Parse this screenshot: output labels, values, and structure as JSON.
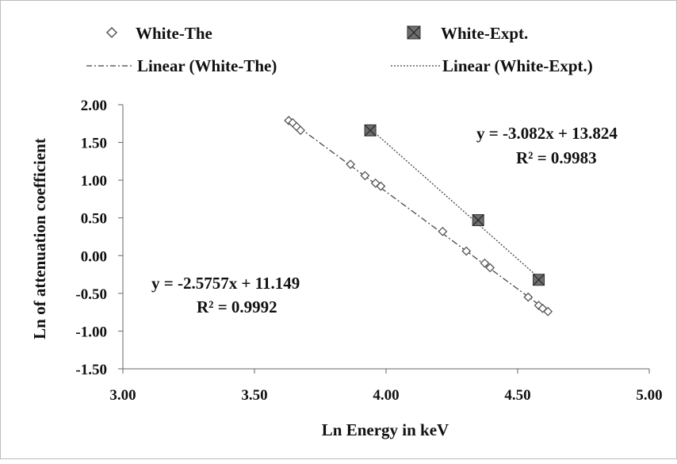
{
  "chart_data": {
    "type": "scatter",
    "title": "",
    "xlabel": "Ln Energy in keV",
    "ylabel": "Ln of attenuation coefficient",
    "xlim": [
      3.0,
      5.0
    ],
    "ylim": [
      -1.5,
      2.0
    ],
    "x_ticks": [
      "3.00",
      "3.50",
      "4.00",
      "4.50",
      "5.00"
    ],
    "y_ticks": [
      "2.00",
      "1.50",
      "1.00",
      "0.50",
      "0.00",
      "-0.50",
      "-1.00",
      "-1.50"
    ],
    "legend_position": "top",
    "grid": false,
    "series": [
      {
        "name": "White-The",
        "marker": "open-diamond",
        "color": "#666666",
        "x": [
          3.63,
          3.645,
          3.66,
          3.675,
          3.865,
          3.92,
          3.96,
          3.98,
          4.215,
          4.305,
          4.375,
          4.395,
          4.54,
          4.58,
          4.595,
          4.615
        ],
        "y": [
          1.79,
          1.76,
          1.71,
          1.66,
          1.21,
          1.06,
          0.96,
          0.92,
          0.32,
          0.06,
          -0.1,
          -0.16,
          -0.55,
          -0.66,
          -0.7,
          -0.74
        ]
      },
      {
        "name": "White-Expt.",
        "marker": "filled-square-x",
        "color": "#666666",
        "x": [
          3.94,
          4.35,
          4.58
        ],
        "y": [
          1.66,
          0.47,
          -0.32
        ]
      }
    ],
    "trendlines": [
      {
        "name": "Linear (White-The)",
        "style": "dash-dot",
        "slope": -2.5757,
        "intercept": 11.149,
        "x_range": [
          3.63,
          4.615
        ],
        "equation": "y = -2.5757x + 11.149",
        "r2": "R² = 0.9992"
      },
      {
        "name": "Linear (White-Expt.)",
        "style": "dotted",
        "slope": -3.082,
        "intercept": 13.824,
        "x_range": [
          3.94,
          4.58
        ],
        "equation": "y = -3.082x + 13.824",
        "r2": "R² = 0.9983"
      }
    ]
  }
}
